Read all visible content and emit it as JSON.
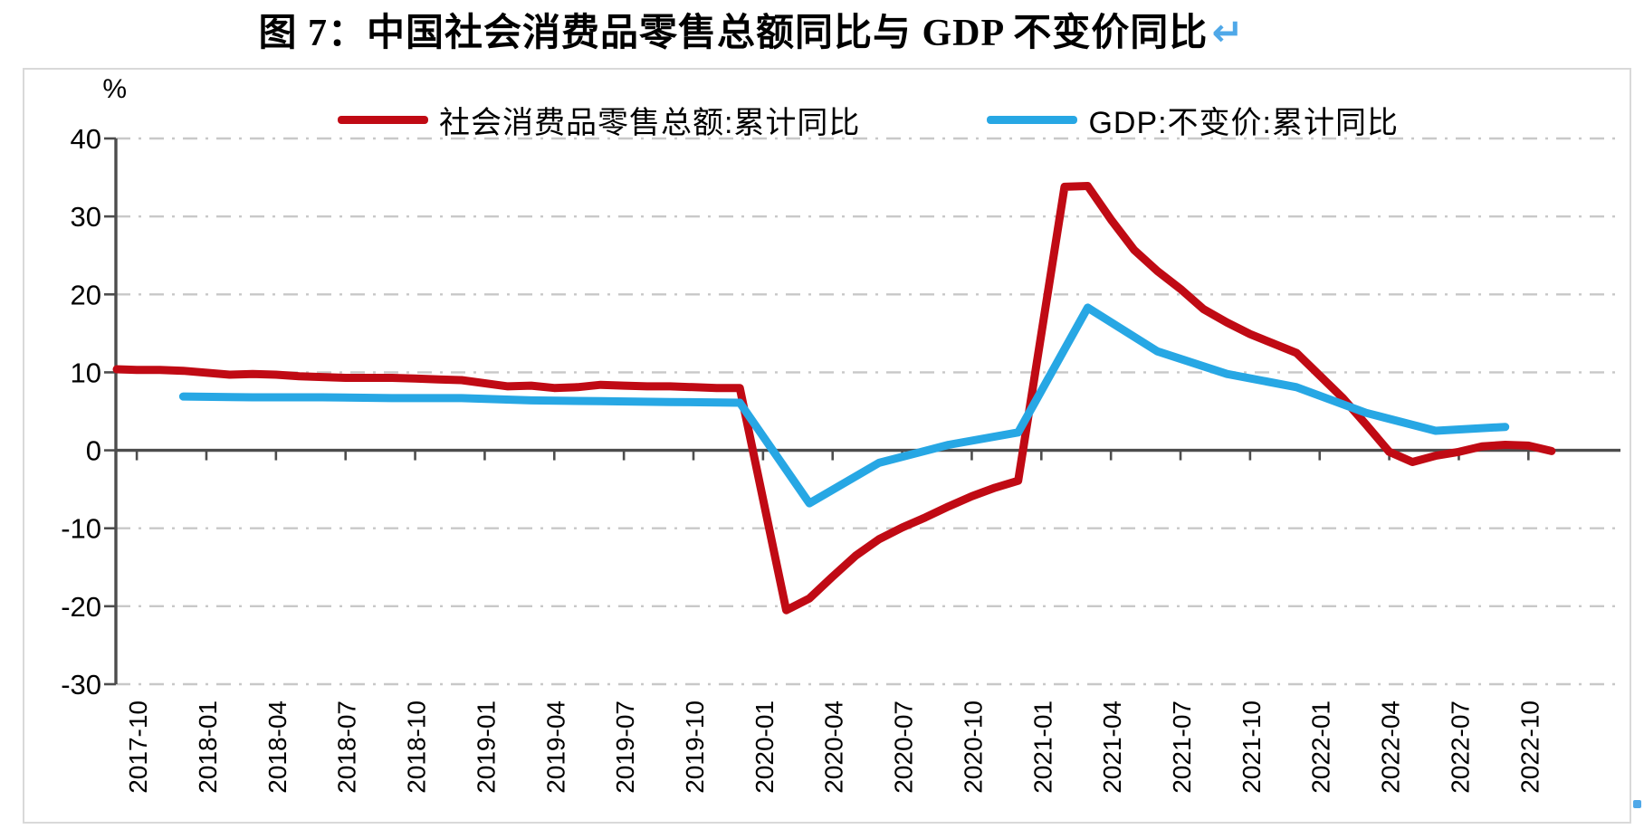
{
  "title": {
    "text": "图 7：中国社会消费品零售总额同比与 GDP 不变价同比",
    "return_mark": "↵"
  },
  "colors": {
    "retail_line": "#C00A14",
    "gdp_line": "#27A7E4",
    "axis": "#4D4D4D",
    "grid": "#C8C8C8",
    "border": "#D9D9D9",
    "return_mark": "#4FA8E8",
    "text": "#000000"
  },
  "chart_data": {
    "type": "line",
    "title": "图 7：中国社会消费品零售总额同比与 GDP 不变价同比",
    "unit_label": "%",
    "xlabel": "",
    "ylabel": "%",
    "legend_position": "top",
    "grid": "horizontal dash-dot",
    "y_axis": {
      "min": -30,
      "max": 40,
      "step": 10,
      "ticks": [
        40,
        30,
        20,
        10,
        0,
        -10,
        -20,
        -30
      ]
    },
    "x_ticks": [
      "2017-10",
      "2018-01",
      "2018-04",
      "2018-07",
      "2018-10",
      "2019-01",
      "2019-04",
      "2019-07",
      "2019-10",
      "2020-01",
      "2020-04",
      "2020-07",
      "2020-10",
      "2021-01",
      "2021-04",
      "2021-07",
      "2021-10",
      "2022-01",
      "2022-04",
      "2022-07",
      "2022-10"
    ],
    "series": [
      {
        "name": "社会消费品零售总额:累计同比",
        "color": "#C00A14",
        "points": [
          [
            "2017-09",
            10.4
          ],
          [
            "2017-10",
            10.3
          ],
          [
            "2017-11",
            10.3
          ],
          [
            "2017-12",
            10.2
          ],
          [
            "2018-02",
            9.7
          ],
          [
            "2018-03",
            9.8
          ],
          [
            "2018-04",
            9.7
          ],
          [
            "2018-05",
            9.5
          ],
          [
            "2018-06",
            9.4
          ],
          [
            "2018-07",
            9.3
          ],
          [
            "2018-08",
            9.3
          ],
          [
            "2018-09",
            9.3
          ],
          [
            "2018-10",
            9.2
          ],
          [
            "2018-11",
            9.1
          ],
          [
            "2018-12",
            9.0
          ],
          [
            "2019-02",
            8.2
          ],
          [
            "2019-03",
            8.3
          ],
          [
            "2019-04",
            8.0
          ],
          [
            "2019-05",
            8.1
          ],
          [
            "2019-06",
            8.4
          ],
          [
            "2019-07",
            8.3
          ],
          [
            "2019-08",
            8.2
          ],
          [
            "2019-09",
            8.2
          ],
          [
            "2019-10",
            8.1
          ],
          [
            "2019-11",
            8.0
          ],
          [
            "2019-12",
            8.0
          ],
          [
            "2020-02",
            -20.5
          ],
          [
            "2020-03",
            -19.0
          ],
          [
            "2020-04",
            -16.2
          ],
          [
            "2020-05",
            -13.5
          ],
          [
            "2020-06",
            -11.4
          ],
          [
            "2020-07",
            -9.9
          ],
          [
            "2020-08",
            -8.6
          ],
          [
            "2020-09",
            -7.2
          ],
          [
            "2020-10",
            -5.9
          ],
          [
            "2020-11",
            -4.8
          ],
          [
            "2020-12",
            -3.9
          ],
          [
            "2021-02",
            33.8
          ],
          [
            "2021-03",
            33.9
          ],
          [
            "2021-04",
            29.6
          ],
          [
            "2021-05",
            25.7
          ],
          [
            "2021-06",
            23.0
          ],
          [
            "2021-07",
            20.7
          ],
          [
            "2021-08",
            18.1
          ],
          [
            "2021-09",
            16.4
          ],
          [
            "2021-10",
            14.9
          ],
          [
            "2021-11",
            13.7
          ],
          [
            "2021-12",
            12.5
          ],
          [
            "2022-02",
            6.7
          ],
          [
            "2022-03",
            3.3
          ],
          [
            "2022-04",
            -0.2
          ],
          [
            "2022-05",
            -1.5
          ],
          [
            "2022-06",
            -0.7
          ],
          [
            "2022-07",
            -0.2
          ],
          [
            "2022-08",
            0.5
          ],
          [
            "2022-09",
            0.7
          ],
          [
            "2022-10",
            0.6
          ],
          [
            "2022-11",
            -0.1
          ]
        ]
      },
      {
        "name": "GDP:不变价:累计同比",
        "color": "#27A7E4",
        "points": [
          [
            "2017-12",
            6.9
          ],
          [
            "2018-03",
            6.8
          ],
          [
            "2018-06",
            6.8
          ],
          [
            "2018-09",
            6.7
          ],
          [
            "2018-12",
            6.7
          ],
          [
            "2019-03",
            6.4
          ],
          [
            "2019-06",
            6.3
          ],
          [
            "2019-09",
            6.2
          ],
          [
            "2019-12",
            6.1
          ],
          [
            "2020-03",
            -6.8
          ],
          [
            "2020-06",
            -1.6
          ],
          [
            "2020-09",
            0.7
          ],
          [
            "2020-12",
            2.3
          ],
          [
            "2021-03",
            18.3
          ],
          [
            "2021-06",
            12.7
          ],
          [
            "2021-09",
            9.8
          ],
          [
            "2021-12",
            8.1
          ],
          [
            "2022-03",
            4.8
          ],
          [
            "2022-06",
            2.5
          ],
          [
            "2022-09",
            3.0
          ]
        ]
      }
    ]
  }
}
